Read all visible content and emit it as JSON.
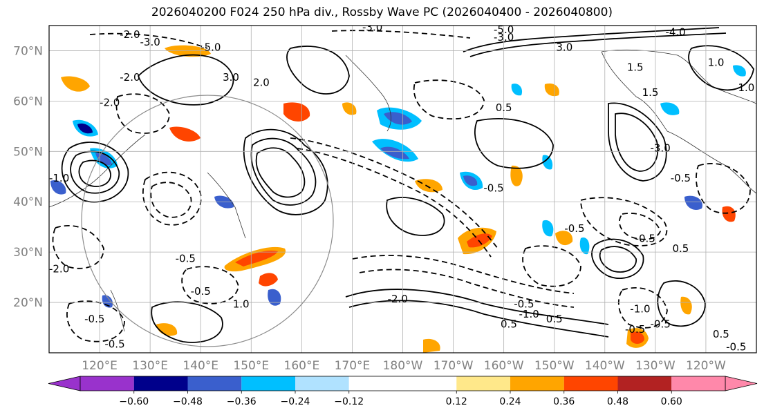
{
  "title": "2026040200 F024 250 hPa div., Rossby Wave PC (2026040400 - 2026040800)",
  "map": {
    "lon_range": [
      110,
      250
    ],
    "lat_range": [
      10,
      75
    ],
    "lat_ticks": [
      {
        "lat": 20,
        "label": "20°N"
      },
      {
        "lat": 30,
        "label": "30°N"
      },
      {
        "lat": 40,
        "label": "40°N"
      },
      {
        "lat": 50,
        "label": "50°N"
      },
      {
        "lat": 60,
        "label": "60°N"
      },
      {
        "lat": 70,
        "label": "70°N"
      }
    ],
    "lon_ticks": [
      {
        "lon": 120,
        "label": "120°E"
      },
      {
        "lon": 130,
        "label": "130°E"
      },
      {
        "lon": 140,
        "label": "140°E"
      },
      {
        "lon": 150,
        "label": "150°E"
      },
      {
        "lon": 160,
        "label": "160°E"
      },
      {
        "lon": 170,
        "label": "170°E"
      },
      {
        "lon": 180,
        "label": "180°W"
      },
      {
        "lon": 190,
        "label": "170°W"
      },
      {
        "lon": 200,
        "label": "160°W"
      },
      {
        "lon": 210,
        "label": "150°W"
      },
      {
        "lon": 220,
        "label": "140°W"
      },
      {
        "lon": 230,
        "label": "130°W"
      },
      {
        "lon": 240,
        "label": "120°W"
      }
    ],
    "gridline_color": "#b0b0b0",
    "contour_labels": [
      {
        "text": "-2.0",
        "lon": 126,
        "lat": 72.5
      },
      {
        "text": "-3.0",
        "lon": 130,
        "lat": 71
      },
      {
        "text": "-5.0",
        "lon": 142,
        "lat": 70
      },
      {
        "text": "-3.0",
        "lon": 174,
        "lat": 74
      },
      {
        "text": "-5.0",
        "lon": 200,
        "lat": 73.5
      },
      {
        "text": "-3.0",
        "lon": 200,
        "lat": 72
      },
      {
        "text": "-4.0",
        "lon": 234,
        "lat": 73
      },
      {
        "text": "3.0",
        "lon": 212,
        "lat": 70
      },
      {
        "text": "-2.0",
        "lon": 126,
        "lat": 64
      },
      {
        "text": "3.0",
        "lon": 146,
        "lat": 64
      },
      {
        "text": "2.0",
        "lon": 152,
        "lat": 63
      },
      {
        "text": "1.5",
        "lon": 226,
        "lat": 66
      },
      {
        "text": "1.0",
        "lon": 242,
        "lat": 67
      },
      {
        "text": "1.0",
        "lon": 248,
        "lat": 62
      },
      {
        "text": "1.5",
        "lon": 229,
        "lat": 61
      },
      {
        "text": "-2.0",
        "lon": 122,
        "lat": 59
      },
      {
        "text": "0.5",
        "lon": 200,
        "lat": 58
      },
      {
        "text": "-3.0",
        "lon": 231,
        "lat": 50
      },
      {
        "text": "-1.0",
        "lon": 112,
        "lat": 44
      },
      {
        "text": "-0.5",
        "lon": 235,
        "lat": 44
      },
      {
        "text": "-0.5",
        "lon": 198,
        "lat": 42
      },
      {
        "text": "-0.5",
        "lon": 214,
        "lat": 34
      },
      {
        "text": "-0.5",
        "lon": 228,
        "lat": 32
      },
      {
        "text": "0.5",
        "lon": 235,
        "lat": 30
      },
      {
        "text": "-0.5",
        "lon": 137,
        "lat": 28
      },
      {
        "text": "-0.5",
        "lon": 140,
        "lat": 21.5
      },
      {
        "text": "-2.0",
        "lon": 112,
        "lat": 26
      },
      {
        "text": "1.0",
        "lon": 148,
        "lat": 19
      },
      {
        "text": "-2.0",
        "lon": 179,
        "lat": 20
      },
      {
        "text": "-0.5",
        "lon": 204,
        "lat": 19
      },
      {
        "text": "-1.0",
        "lon": 205,
        "lat": 17
      },
      {
        "text": "0.5",
        "lon": 210,
        "lat": 16
      },
      {
        "text": "-0.5",
        "lon": 119,
        "lat": 16
      },
      {
        "text": "-0.5",
        "lon": 226,
        "lat": 14
      },
      {
        "text": "-0.5",
        "lon": 231,
        "lat": 15
      },
      {
        "text": "0.5",
        "lon": 243,
        "lat": 13
      },
      {
        "text": "-0.5",
        "lon": 246,
        "lat": 10.5
      },
      {
        "text": "-1.0",
        "lon": 227,
        "lat": 18
      },
      {
        "text": "0.5",
        "lon": 201,
        "lat": 15
      },
      {
        "text": "-0.5",
        "lon": 123,
        "lat": 11
      }
    ]
  },
  "colorbar": {
    "bounds": [
      -0.72,
      -0.6,
      -0.48,
      -0.36,
      -0.24,
      -0.12,
      0.12,
      0.24,
      0.36,
      0.48,
      0.6,
      0.72
    ],
    "tick_labels": [
      "−0.60",
      "−0.48",
      "−0.36",
      "−0.24",
      "−0.12",
      "0.12",
      "0.24",
      "0.36",
      "0.48",
      "0.60"
    ],
    "tick_values": [
      -0.6,
      -0.48,
      -0.36,
      -0.24,
      -0.12,
      0.12,
      0.24,
      0.36,
      0.48,
      0.6
    ],
    "colors": [
      "#9932cc",
      "#00008b",
      "#3a5fcd",
      "#00bfff",
      "#b0e2ff",
      "#ffffff",
      "#ffe88a",
      "#ffa500",
      "#ff4500",
      "#b22222",
      "#ff88aa"
    ],
    "under_color": "#9932cc",
    "over_color": "#ff88aa"
  }
}
